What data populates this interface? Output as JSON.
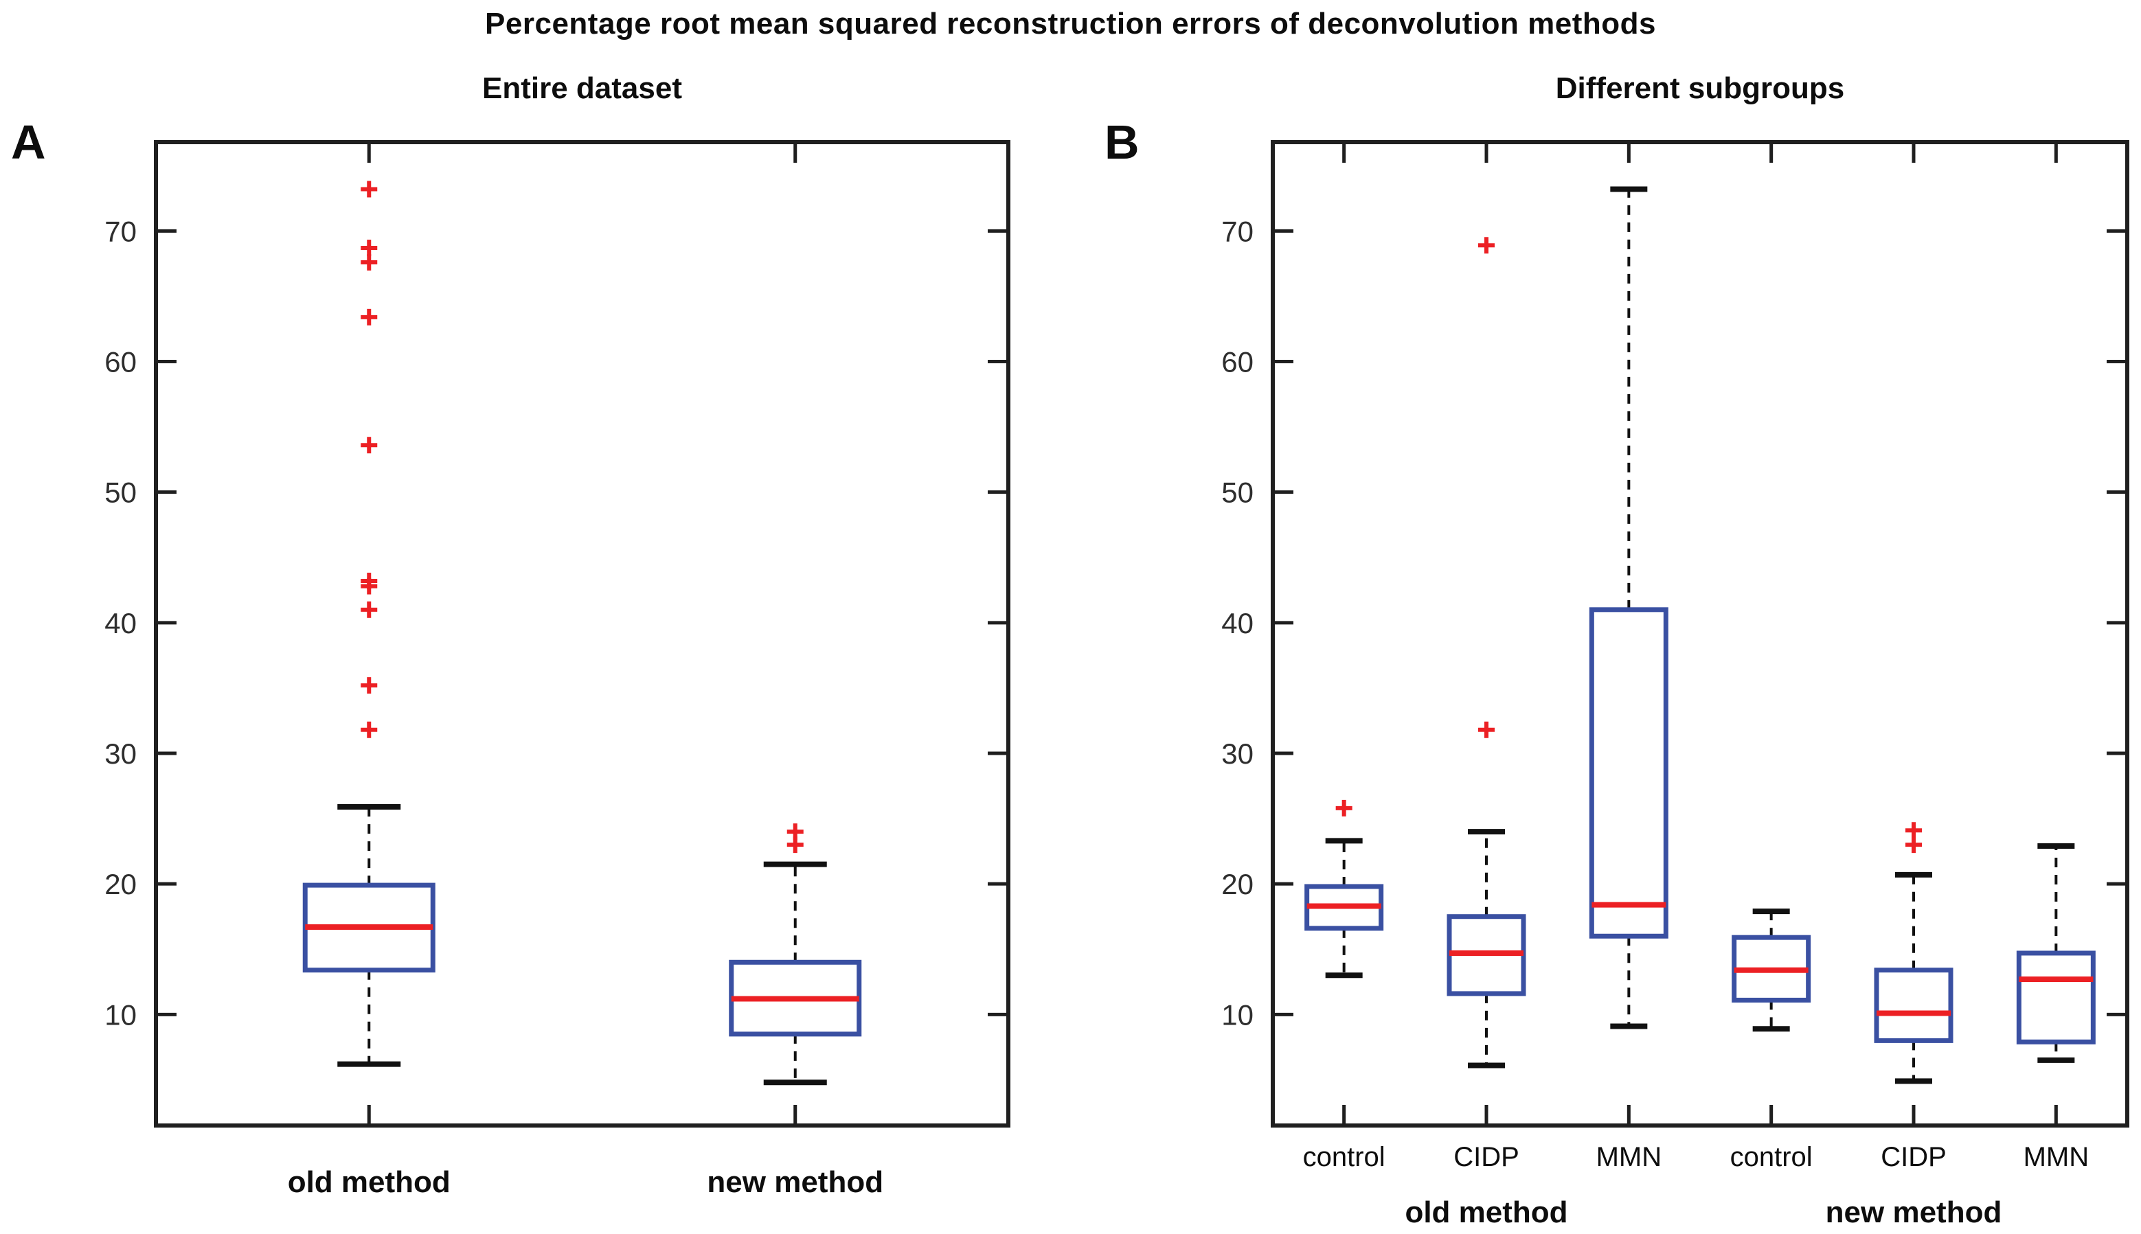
{
  "title": "Percentage root mean squared reconstruction errors of deconvolution methods",
  "colors": {
    "box": "#3a50a2",
    "median": "#ec2024",
    "outlier": "#ec2024",
    "whisker": "#111111",
    "axis": "#1f1f1f",
    "tick_label": "#2e2e2e",
    "text": "#0d0d0d"
  },
  "chart_data": [
    {
      "type": "boxplot",
      "panel_letter": "A",
      "title": "Entire dataset",
      "xlabel": "",
      "ylabel": "",
      "ylim": [
        1.5,
        76.8
      ],
      "yticks": [
        10,
        20,
        30,
        40,
        50,
        60,
        70
      ],
      "grid": false,
      "categories": [
        "old method",
        "new method"
      ],
      "boxes": [
        {
          "label": "old method",
          "whisker_low": 6.2,
          "q1": 13.4,
          "median": 16.7,
          "q3": 19.9,
          "whisker_high": 25.9,
          "outliers": [
            31.8,
            35.2,
            41.0,
            42.8,
            43.2,
            53.6,
            63.4,
            67.6,
            68.7,
            73.2
          ]
        },
        {
          "label": "new method",
          "whisker_low": 4.8,
          "q1": 8.5,
          "median": 11.2,
          "q3": 14.0,
          "whisker_high": 21.5,
          "outliers": [
            23.0,
            24.0
          ]
        }
      ]
    },
    {
      "type": "boxplot",
      "panel_letter": "B",
      "title": "Different subgroups",
      "xlabel": "",
      "ylabel": "",
      "ylim": [
        1.5,
        76.8
      ],
      "yticks": [
        10,
        20,
        30,
        40,
        50,
        60,
        70
      ],
      "grid": false,
      "categories": [
        "control",
        "CIDP",
        "MMN",
        "control",
        "CIDP",
        "MMN"
      ],
      "group_labels": [
        {
          "label": "old method",
          "center_index": 1
        },
        {
          "label": "new method",
          "center_index": 4
        }
      ],
      "boxes": [
        {
          "label": "control (old method)",
          "whisker_low": 13.0,
          "q1": 16.6,
          "median": 18.3,
          "q3": 19.8,
          "whisker_high": 23.3,
          "outliers": [
            25.8
          ]
        },
        {
          "label": "CIDP (old method)",
          "whisker_low": 6.1,
          "q1": 11.6,
          "median": 14.7,
          "q3": 17.5,
          "whisker_high": 24.0,
          "outliers": [
            31.8,
            68.9
          ]
        },
        {
          "label": "MMN (old method)",
          "whisker_low": 9.1,
          "q1": 16.0,
          "median": 18.4,
          "q3": 41.0,
          "whisker_high": 73.2,
          "outliers": []
        },
        {
          "label": "control (new method)",
          "whisker_low": 8.9,
          "q1": 11.1,
          "median": 13.4,
          "q3": 15.9,
          "whisker_high": 17.9,
          "outliers": []
        },
        {
          "label": "CIDP (new method)",
          "whisker_low": 4.9,
          "q1": 8.0,
          "median": 10.1,
          "q3": 13.4,
          "whisker_high": 20.7,
          "outliers": [
            23.0,
            24.1
          ]
        },
        {
          "label": "MMN (new method)",
          "whisker_low": 6.5,
          "q1": 7.9,
          "median": 12.7,
          "q3": 14.7,
          "whisker_high": 22.9,
          "outliers": []
        }
      ]
    }
  ]
}
